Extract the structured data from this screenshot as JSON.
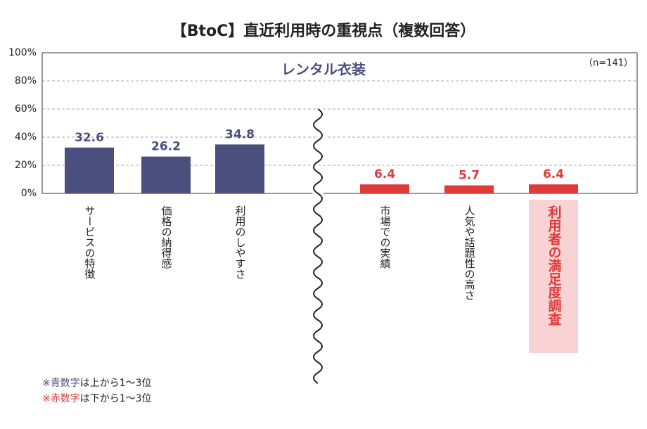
{
  "chart_data": {
    "type": "bar",
    "title": "【BtoC】直近利用時の重視点（複数回答）",
    "subtitle": "レンタル衣装",
    "sample_size": "（n=141）",
    "categories": [
      "サービスの特徴",
      "価格の納得感",
      "利用のしやすさ",
      "市場での実績",
      "人気や話題性の高さ",
      "利用者の満足度調査"
    ],
    "values": [
      32.6,
      26.2,
      34.8,
      6.4,
      5.7,
      6.4
    ],
    "colors": [
      "#4a4f7e",
      "#4a4f7e",
      "#4a4f7e",
      "#e03a3a",
      "#e03a3a",
      "#e03a3a"
    ],
    "highlighted_category": 5,
    "axis_break": true,
    "ylim": [
      0,
      100
    ],
    "yticks": [
      {
        "value": 0,
        "label": "0%"
      },
      {
        "value": 20,
        "label": "20%"
      },
      {
        "value": 40,
        "label": "40%"
      },
      {
        "value": 60,
        "label": "60%"
      },
      {
        "value": 80,
        "label": "80%"
      },
      {
        "value": 100,
        "label": "100%"
      }
    ],
    "grid": true,
    "notes": [
      [
        {
          "text": "※青数字",
          "color": "#4a4f7e"
        },
        {
          "text": "は上から1〜3位",
          "color": "#222222"
        }
      ],
      [
        {
          "text": "※赤数字",
          "color": "#e03a3a"
        },
        {
          "text": "は下から1〜3位",
          "color": "#222222"
        }
      ]
    ]
  }
}
